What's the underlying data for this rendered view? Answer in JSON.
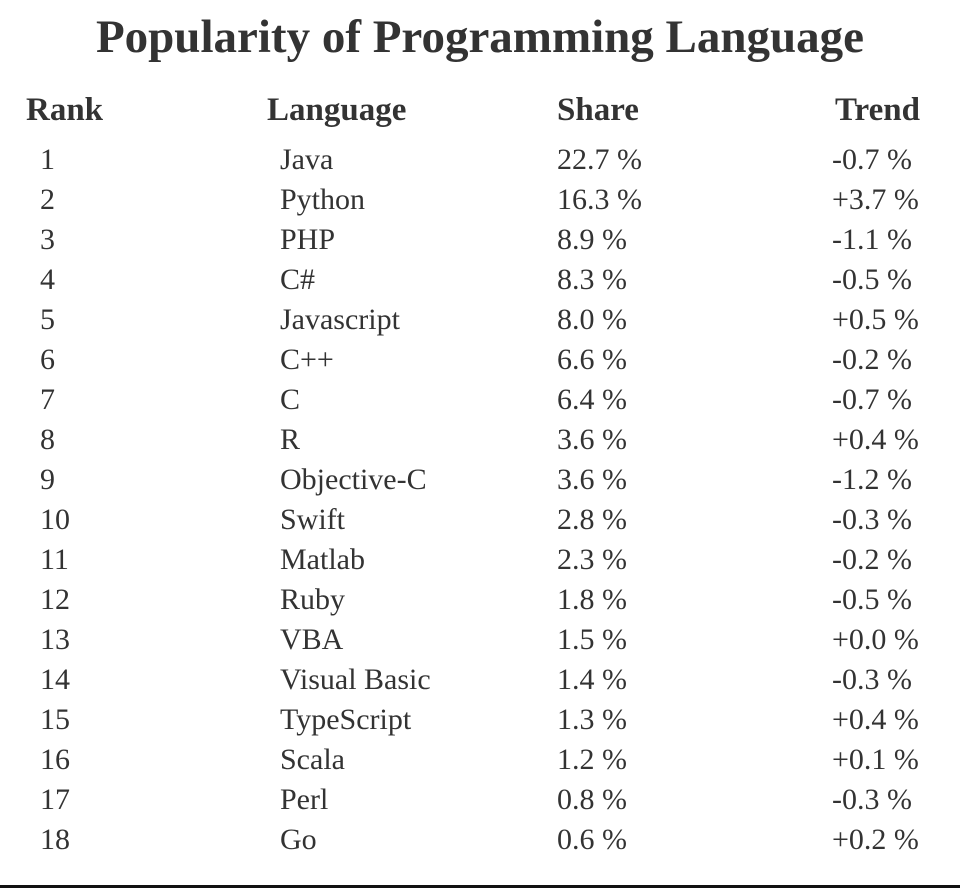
{
  "title": "Popularity of Programming Language",
  "table": {
    "header": [
      "Rank",
      "Language",
      "Share",
      "Trend"
    ],
    "rows": [
      [
        "1",
        "Java",
        "22.7 %",
        "-0.7 %"
      ],
      [
        "2",
        "Python",
        "16.3 %",
        "+3.7 %"
      ],
      [
        "3",
        "PHP",
        "8.9 %",
        "-1.1 %"
      ],
      [
        "4",
        "C#",
        "8.3 %",
        "-0.5 %"
      ],
      [
        "5",
        "Javascript",
        "8.0 %",
        "+0.5 %"
      ],
      [
        "6",
        "C++",
        "6.6 %",
        "-0.2 %"
      ],
      [
        "7",
        "C",
        "6.4 %",
        "-0.7 %"
      ],
      [
        "8",
        "R",
        "3.6 %",
        "+0.4 %"
      ],
      [
        "9",
        "Objective-C",
        "3.6 %",
        "-1.2 %"
      ],
      [
        "10",
        "Swift",
        "2.8 %",
        "-0.3 %"
      ],
      [
        "11",
        "Matlab",
        "2.3 %",
        "-0.2 %"
      ],
      [
        "12",
        "Ruby",
        "1.8 %",
        "-0.5 %"
      ],
      [
        "13",
        "VBA",
        "1.5 %",
        "+0.0 %"
      ],
      [
        "14",
        "Visual Basic",
        "1.4 %",
        "-0.3 %"
      ],
      [
        "15",
        "TypeScript",
        "1.3 %",
        "+0.4 %"
      ],
      [
        "16",
        "Scala",
        "1.2 %",
        "+0.1 %"
      ],
      [
        "17",
        "Perl",
        "0.8 %",
        "-0.3 %"
      ],
      [
        "18",
        "Go",
        "0.6 %",
        "+0.2 %"
      ]
    ]
  }
}
